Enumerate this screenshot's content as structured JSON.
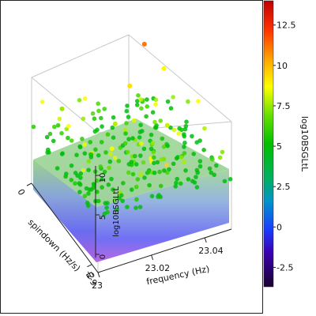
{
  "chart_data": {
    "type": "scatter",
    "projection": "3d",
    "xlabel": "frequency (Hz)",
    "ylabel": "spindown (Hz/s)",
    "zlabel": "log10BSGLtL",
    "xlim": [
      23.0,
      23.05
    ],
    "ylim": [
      -2.2e-09,
      0
    ],
    "zlim": [
      -1,
      14
    ],
    "x_ticks": [
      "23",
      "23.02",
      "23.04"
    ],
    "y_ticks": [
      "0",
      "-2",
      "E-9"
    ],
    "z_ticks": [
      "0",
      "5",
      "10"
    ],
    "color_scale": {
      "label": "log10BSGLtL",
      "min": -3.7,
      "max": 14,
      "ticks": [
        "-2.5",
        "0",
        "2.5",
        "5",
        "7.5",
        "10",
        "12.5"
      ],
      "colormap": [
        "#2a0040",
        "#1a1aff",
        "#00a0c0",
        "#00c000",
        "#ffff00",
        "#ff8000",
        "#d00000"
      ]
    },
    "series": [
      {
        "description_values_z_range": [
          -1,
          11
        ],
        "points": [
          {
            "x": 23.04,
            "y": -2e-10,
            "z": 11.0
          },
          {
            "x": 23.03,
            "y": -6e-10,
            "z": 9.2
          },
          {
            "x": 23.012,
            "y": -1.6e-09,
            "z": 8.5
          },
          {
            "x": 23.045,
            "y": -4e-10,
            "z": 8.8
          },
          {
            "x": 23.02,
            "y": -1e-09,
            "z": 7.8
          },
          {
            "x": 23.035,
            "y": -1.4e-09,
            "z": 8.0
          },
          {
            "x": 23.008,
            "y": -3e-10,
            "z": 7.5
          },
          {
            "x": 23.028,
            "y": -1.9e-09,
            "z": 7.2
          }
        ]
      }
    ]
  }
}
